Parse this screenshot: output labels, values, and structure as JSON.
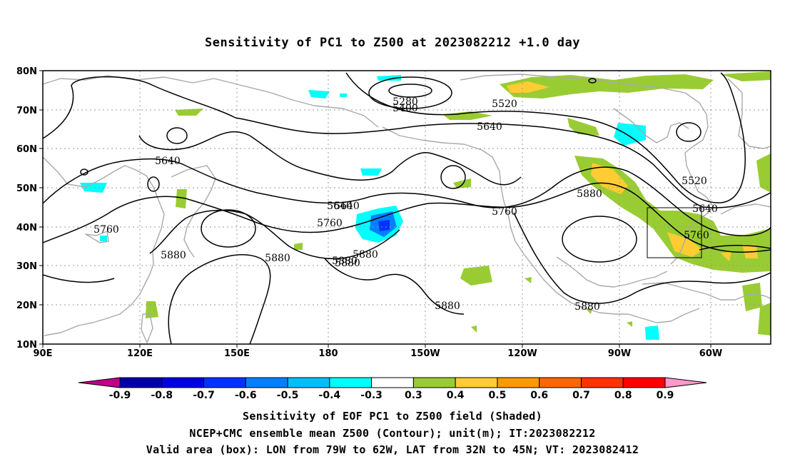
{
  "title": "Sensitivity of PC1 to Z500 at 2023082212 +1.0 day",
  "map": {
    "lat_labels": [
      "80N",
      "70N",
      "60N",
      "50N",
      "40N",
      "30N",
      "20N",
      "10N"
    ],
    "lon_labels": [
      "90E",
      "120E",
      "150E",
      "180",
      "150W",
      "120W",
      "90W",
      "60W"
    ],
    "contour_color": "#000000",
    "coast_color": "#a9a9a9",
    "grid_style": "dotted",
    "valid_box": {
      "lon_min": -79,
      "lon_max": -62,
      "lat_min": 32,
      "lat_max": 45
    },
    "contour_labels": [
      "5280",
      "5400",
      "5520",
      "5640",
      "5640",
      "5640",
      "5520",
      "5640",
      "5880",
      "5760",
      "5760",
      "5640",
      "5760",
      "5760",
      "5880",
      "5880",
      "5880",
      "5880",
      "5880",
      "5880",
      "5880"
    ]
  },
  "colorbar": {
    "labels": [
      "-0.9",
      "-0.8",
      "-0.7",
      "-0.6",
      "-0.5",
      "-0.4",
      "-0.3",
      "0.3",
      "0.4",
      "0.5",
      "0.6",
      "0.7",
      "0.8",
      "0.9"
    ],
    "colors": [
      "#c0008a",
      "#0000aa",
      "#0000e6",
      "#0033ff",
      "#0080ff",
      "#00bfff",
      "#00ffff",
      "#ffffff",
      "#99cc33",
      "#ffcc33",
      "#ff9900",
      "#ff6600",
      "#ff3300",
      "#ff0000",
      "#ff99cc"
    ]
  },
  "footer": {
    "line1": "Sensitivity of EOF PC1 to Z500 field (Shaded)",
    "line2": "NCEP+CMC ensemble mean Z500 (Contour); unit(m); IT:2023082212",
    "line3": "Valid area (box): LON from 79W to 62W, LAT from 32N to 45N; VT: 2023082412"
  }
}
